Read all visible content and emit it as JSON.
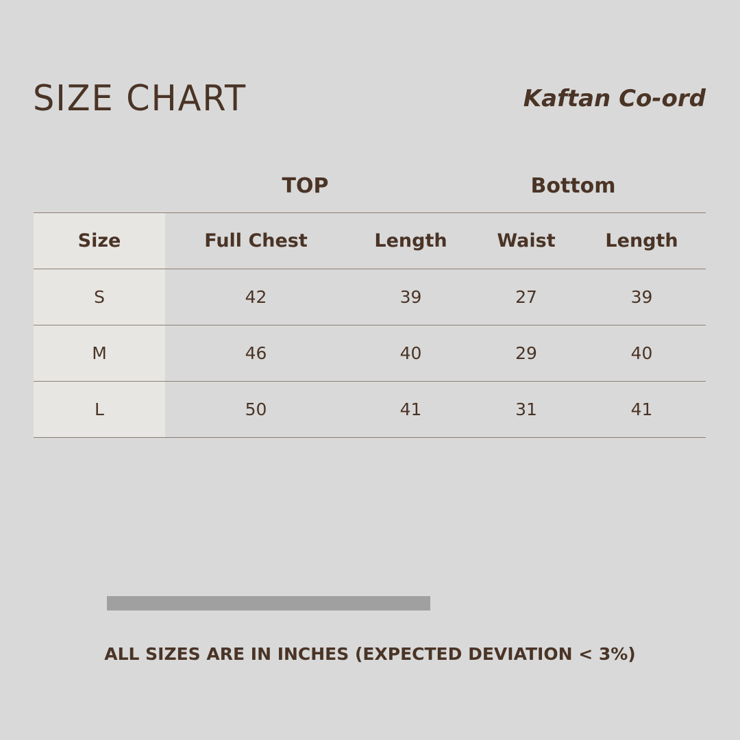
{
  "title": "SIZE CHART",
  "product": "Kaftan Co-ord",
  "groups": {
    "top": "TOP",
    "bottom": "Bottom"
  },
  "headers": [
    "Size",
    "Full Chest",
    "Length",
    "Waist",
    "Length"
  ],
  "rows": [
    [
      "S",
      "42",
      "39",
      "27",
      "39"
    ],
    [
      "M",
      "46",
      "40",
      "29",
      "40"
    ],
    [
      "L",
      "50",
      "41",
      "31",
      "41"
    ]
  ],
  "note": "ALL SIZES ARE IN INCHES (EXPECTED DEVIATION < 3%)"
}
